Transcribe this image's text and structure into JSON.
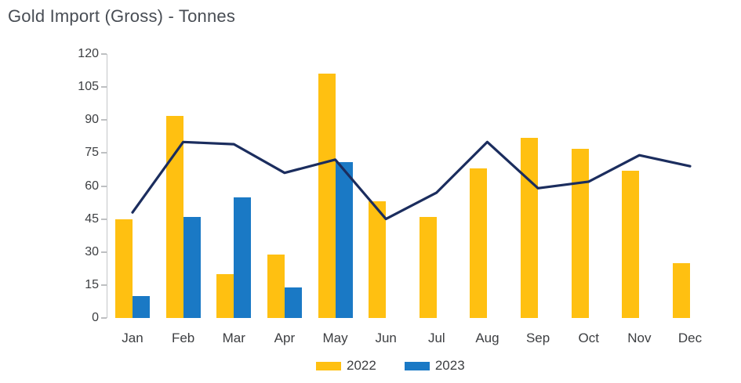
{
  "title": "Gold Import (Gross) - Tonnes",
  "colors": {
    "bar_2022": "#FFC011",
    "bar_2023": "#1A79C5",
    "trend_line": "#1B2D5E",
    "axis": "#C4C6C8",
    "tick_text": "#3C3E41",
    "title_text": "#484D54"
  },
  "legend": [
    {
      "label": "2022",
      "color": "#FFC011"
    },
    {
      "label": "2023",
      "color": "#1A79C5"
    }
  ],
  "chart_data": {
    "type": "bar",
    "title": "Gold Import (Gross) - Tonnes",
    "categories": [
      "Jan",
      "Feb",
      "Mar",
      "Apr",
      "May",
      "Jun",
      "Jul",
      "Aug",
      "Sep",
      "Oct",
      "Nov",
      "Dec"
    ],
    "series": [
      {
        "name": "2022",
        "type": "bar",
        "color": "#FFC011",
        "values": [
          45,
          92,
          20,
          29,
          111,
          53,
          46,
          68,
          82,
          77,
          67,
          25
        ]
      },
      {
        "name": "2023",
        "type": "bar",
        "color": "#1A79C5",
        "values": [
          10,
          46,
          55,
          14,
          71,
          null,
          null,
          null,
          null,
          null,
          null,
          null
        ]
      },
      {
        "name": "trend-line",
        "type": "line",
        "color": "#1B2D5E",
        "values": [
          48,
          80,
          79,
          66,
          72,
          45,
          57,
          80,
          59,
          62,
          74,
          69
        ]
      }
    ],
    "xlabel": "",
    "ylabel": "",
    "ylim": [
      0,
      120
    ],
    "ytick_step": 15,
    "ytick_labels": [
      "0",
      "15",
      "30",
      "45",
      "60",
      "75",
      "90",
      "105",
      "120"
    ],
    "grid": false,
    "legend_position": "bottom",
    "legend_entries": [
      "2022",
      "2023"
    ]
  }
}
